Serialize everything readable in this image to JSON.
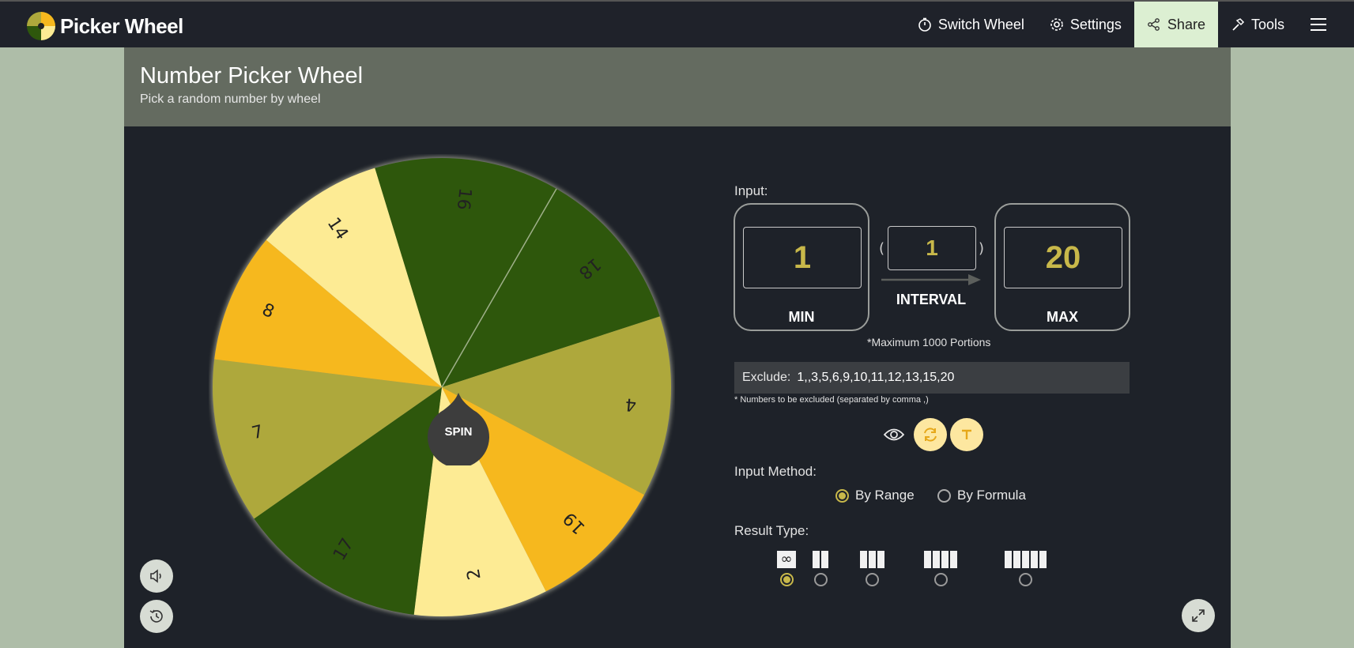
{
  "header": {
    "brand": "Picker Wheel",
    "nav": [
      {
        "label": "Switch Wheel",
        "icon": "timer-icon"
      },
      {
        "label": "Settings",
        "icon": "gear-icon"
      },
      {
        "label": "Share",
        "icon": "share-icon",
        "active": true
      },
      {
        "label": "Tools",
        "icon": "hammer-icon"
      }
    ],
    "menu_icon": "hamburger-menu-icon"
  },
  "page": {
    "title": "Number Picker Wheel",
    "subtitle": "Pick a random number by wheel"
  },
  "wheel": {
    "spin_label": "SPIN",
    "segments": [
      "16",
      "18",
      "4",
      "19",
      "2",
      "17",
      "7",
      "8",
      "14"
    ],
    "colors": {
      "dark_green": "#2e570c",
      "olive": "#aea83c",
      "orange": "#f6b81e",
      "pale_yellow": "#fdeb94"
    }
  },
  "input": {
    "label": "Input:",
    "min_value": "1",
    "min_label": "MIN",
    "interval_value": "1",
    "interval_label": "INTERVAL",
    "max_value": "20",
    "max_label": "MAX",
    "max_note": "*Maximum 1000 Portions"
  },
  "exclude": {
    "label": "Exclude:",
    "value": "1,,3,5,6,9,10,11,12,13,15,20",
    "note": "* Numbers to be excluded (separated by comma ,)"
  },
  "input_method": {
    "label": "Input Method:",
    "options": [
      "By Range",
      "By Formula"
    ],
    "selected": "By Range"
  },
  "result_type": {
    "label": "Result Type:",
    "inf_symbol": "∞"
  },
  "accent_color": "#c8b84a"
}
